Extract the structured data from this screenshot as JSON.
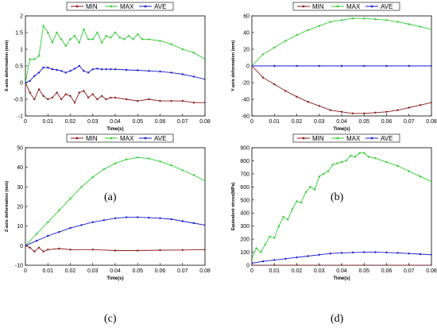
{
  "colors": {
    "MIN": "#8b1a1a",
    "MAX": "#33cc33",
    "AVE": "#1a1acc"
  },
  "chart_data": [
    {
      "id": "a",
      "label": "(a)",
      "type": "line",
      "xlabel": "Time(s)",
      "ylabel": "X-axis deformation (mm)",
      "xlim": [
        0,
        0.08
      ],
      "ylim": [
        -1,
        2
      ],
      "xticks": [
        "0",
        "0.01",
        "0.02",
        "0.03",
        "0.04",
        "0.05",
        "0.06",
        "0.07",
        "0.08"
      ],
      "yticks": [
        "-1",
        "-0.5",
        "0",
        "0.5",
        "1",
        "1.5",
        "2"
      ],
      "legend": [
        "MIN",
        "MAX",
        "AVE"
      ],
      "series": [
        {
          "name": "MIN",
          "x": [
            0,
            0.002,
            0.004,
            0.006,
            0.008,
            0.01,
            0.012,
            0.014,
            0.016,
            0.018,
            0.02,
            0.022,
            0.024,
            0.026,
            0.028,
            0.03,
            0.032,
            0.034,
            0.036,
            0.038,
            0.04,
            0.045,
            0.05,
            0.055,
            0.06,
            0.065,
            0.07,
            0.075,
            0.08
          ],
          "y": [
            0,
            -0.3,
            -0.5,
            -0.2,
            -0.4,
            -0.5,
            -0.45,
            -0.3,
            -0.5,
            -0.35,
            -0.4,
            -0.6,
            -0.3,
            -0.25,
            -0.45,
            -0.35,
            -0.5,
            -0.4,
            -0.5,
            -0.45,
            -0.45,
            -0.5,
            -0.55,
            -0.5,
            -0.55,
            -0.55,
            -0.55,
            -0.6,
            -0.6
          ]
        },
        {
          "name": "MAX",
          "x": [
            0,
            0.002,
            0.004,
            0.006,
            0.008,
            0.01,
            0.012,
            0.014,
            0.016,
            0.018,
            0.02,
            0.022,
            0.024,
            0.026,
            0.028,
            0.03,
            0.032,
            0.034,
            0.036,
            0.038,
            0.04,
            0.042,
            0.044,
            0.046,
            0.048,
            0.05,
            0.052,
            0.055,
            0.06,
            0.065,
            0.07,
            0.075,
            0.08
          ],
          "y": [
            0,
            0.7,
            0.7,
            0.8,
            1.7,
            1.5,
            1.2,
            1.5,
            1.3,
            1.1,
            1.3,
            1.4,
            1.2,
            1.6,
            1.3,
            1.3,
            1.5,
            1.2,
            1.4,
            1.35,
            1.5,
            1.35,
            1.3,
            1.4,
            1.3,
            1.45,
            1.3,
            1.3,
            1.25,
            1.15,
            1.0,
            0.9,
            0.7
          ]
        },
        {
          "name": "AVE",
          "x": [
            0,
            0.002,
            0.004,
            0.006,
            0.008,
            0.01,
            0.012,
            0.014,
            0.016,
            0.018,
            0.02,
            0.022,
            0.024,
            0.026,
            0.028,
            0.03,
            0.032,
            0.034,
            0.036,
            0.038,
            0.04,
            0.045,
            0.05,
            0.055,
            0.06,
            0.065,
            0.07,
            0.075,
            0.08
          ],
          "y": [
            0,
            0.05,
            0.2,
            0.3,
            0.45,
            0.45,
            0.4,
            0.38,
            0.35,
            0.3,
            0.35,
            0.42,
            0.5,
            0.35,
            0.3,
            0.4,
            0.42,
            0.4,
            0.4,
            0.4,
            0.4,
            0.38,
            0.37,
            0.35,
            0.33,
            0.3,
            0.25,
            0.18,
            0.1
          ]
        }
      ]
    },
    {
      "id": "b",
      "label": "(b)",
      "type": "line",
      "xlabel": "Time(s)",
      "ylabel": "Y-axis deformation (mm)",
      "xlim": [
        0,
        0.08
      ],
      "ylim": [
        -60,
        60
      ],
      "xticks": [
        "0",
        "0.01",
        "0.02",
        "0.03",
        "0.04",
        "0.05",
        "0.06",
        "0.07",
        "0.08"
      ],
      "yticks": [
        "-60",
        "-40",
        "-20",
        "0",
        "20",
        "40",
        "60"
      ],
      "legend": [
        "MIN",
        "MAX",
        "AVE"
      ],
      "series": [
        {
          "name": "MIN",
          "x": [
            0,
            0.005,
            0.01,
            0.015,
            0.02,
            0.025,
            0.03,
            0.035,
            0.04,
            0.045,
            0.05,
            0.055,
            0.06,
            0.065,
            0.07,
            0.075,
            0.08
          ],
          "y": [
            0,
            -14,
            -22,
            -30,
            -37,
            -43,
            -48,
            -53,
            -55,
            -57,
            -57,
            -56,
            -55,
            -53,
            -50,
            -47,
            -44
          ]
        },
        {
          "name": "MAX",
          "x": [
            0,
            0.005,
            0.01,
            0.015,
            0.02,
            0.025,
            0.03,
            0.035,
            0.04,
            0.045,
            0.05,
            0.055,
            0.06,
            0.065,
            0.07,
            0.075,
            0.08
          ],
          "y": [
            0,
            14,
            22,
            30,
            37,
            43,
            48,
            53,
            55,
            57,
            57,
            56,
            55,
            53,
            50,
            47,
            44
          ]
        },
        {
          "name": "AVE",
          "x": [
            0,
            0.01,
            0.02,
            0.03,
            0.04,
            0.05,
            0.06,
            0.07,
            0.08
          ],
          "y": [
            0,
            0,
            0,
            0,
            0,
            0,
            0,
            0,
            0
          ]
        }
      ]
    },
    {
      "id": "c",
      "label": "(c)",
      "type": "line",
      "xlabel": "Time(s)",
      "ylabel": "Z-axis deformation (mm)",
      "xlim": [
        0,
        0.08
      ],
      "ylim": [
        -10,
        50
      ],
      "xticks": [
        "0",
        "0.01",
        "0.02",
        "0.03",
        "0.04",
        "0.05",
        "0.06",
        "0.07",
        "0.08"
      ],
      "yticks": [
        "-10",
        "0",
        "10",
        "20",
        "30",
        "40",
        "50"
      ],
      "legend": [
        "MIN",
        "MAX",
        "AVE"
      ],
      "series": [
        {
          "name": "MIN",
          "x": [
            0,
            0.002,
            0.004,
            0.006,
            0.008,
            0.01,
            0.015,
            0.02,
            0.03,
            0.04,
            0.05,
            0.06,
            0.07,
            0.08
          ],
          "y": [
            0,
            -1,
            -3,
            -1,
            -3,
            -2,
            -1.5,
            -2,
            -2,
            -2.5,
            -2.5,
            -2.3,
            -2.2,
            -2
          ]
        },
        {
          "name": "MAX",
          "x": [
            0,
            0.005,
            0.01,
            0.015,
            0.02,
            0.025,
            0.03,
            0.035,
            0.04,
            0.045,
            0.05,
            0.055,
            0.06,
            0.065,
            0.07,
            0.075,
            0.08
          ],
          "y": [
            0,
            6,
            12,
            18,
            24,
            30,
            35,
            39,
            42,
            44,
            45,
            44.5,
            43,
            41,
            38.5,
            36,
            33
          ]
        },
        {
          "name": "AVE",
          "x": [
            0,
            0.005,
            0.01,
            0.015,
            0.02,
            0.025,
            0.03,
            0.035,
            0.04,
            0.045,
            0.05,
            0.055,
            0.06,
            0.065,
            0.07,
            0.075,
            0.08
          ],
          "y": [
            0,
            2.5,
            5,
            7,
            9,
            10.5,
            12,
            13,
            14,
            14.5,
            14.5,
            14.3,
            14,
            13.5,
            12.5,
            11.5,
            10.5
          ]
        }
      ]
    },
    {
      "id": "d",
      "label": "(d)",
      "type": "line",
      "xlabel": "Time(s)",
      "ylabel": "Equivalent stress(MPa)",
      "xlim": [
        0,
        0.08
      ],
      "ylim": [
        0,
        900
      ],
      "xticks": [
        "0",
        "0.01",
        "0.02",
        "0.03",
        "0.04",
        "0.05",
        "0.06",
        "0.07",
        "0.08"
      ],
      "yticks": [
        "0",
        "100",
        "200",
        "300",
        "400",
        "500",
        "600",
        "700",
        "800",
        "900"
      ],
      "legend": [
        "MIN",
        "MAX",
        "AVE"
      ],
      "series": [
        {
          "name": "MIN",
          "x": [
            0,
            0.01,
            0.02,
            0.03,
            0.04,
            0.05,
            0.06,
            0.07,
            0.08
          ],
          "y": [
            0,
            0,
            0,
            0,
            0,
            0,
            0,
            0,
            0
          ]
        },
        {
          "name": "MAX",
          "x": [
            0,
            0.002,
            0.004,
            0.006,
            0.008,
            0.01,
            0.012,
            0.014,
            0.016,
            0.018,
            0.02,
            0.022,
            0.024,
            0.026,
            0.028,
            0.03,
            0.032,
            0.034,
            0.036,
            0.038,
            0.04,
            0.042,
            0.044,
            0.046,
            0.048,
            0.05,
            0.052,
            0.055,
            0.06,
            0.065,
            0.07,
            0.075,
            0.08
          ],
          "y": [
            50,
            130,
            100,
            160,
            220,
            210,
            300,
            370,
            350,
            430,
            490,
            480,
            560,
            600,
            580,
            680,
            700,
            720,
            770,
            780,
            790,
            800,
            840,
            830,
            860,
            860,
            830,
            820,
            790,
            760,
            720,
            680,
            640
          ]
        },
        {
          "name": "AVE",
          "x": [
            0,
            0.005,
            0.01,
            0.015,
            0.02,
            0.025,
            0.03,
            0.035,
            0.04,
            0.045,
            0.05,
            0.055,
            0.06,
            0.065,
            0.07,
            0.075,
            0.08
          ],
          "y": [
            15,
            30,
            40,
            50,
            60,
            70,
            80,
            90,
            95,
            98,
            100,
            100,
            98,
            95,
            90,
            85,
            80
          ]
        }
      ]
    }
  ]
}
